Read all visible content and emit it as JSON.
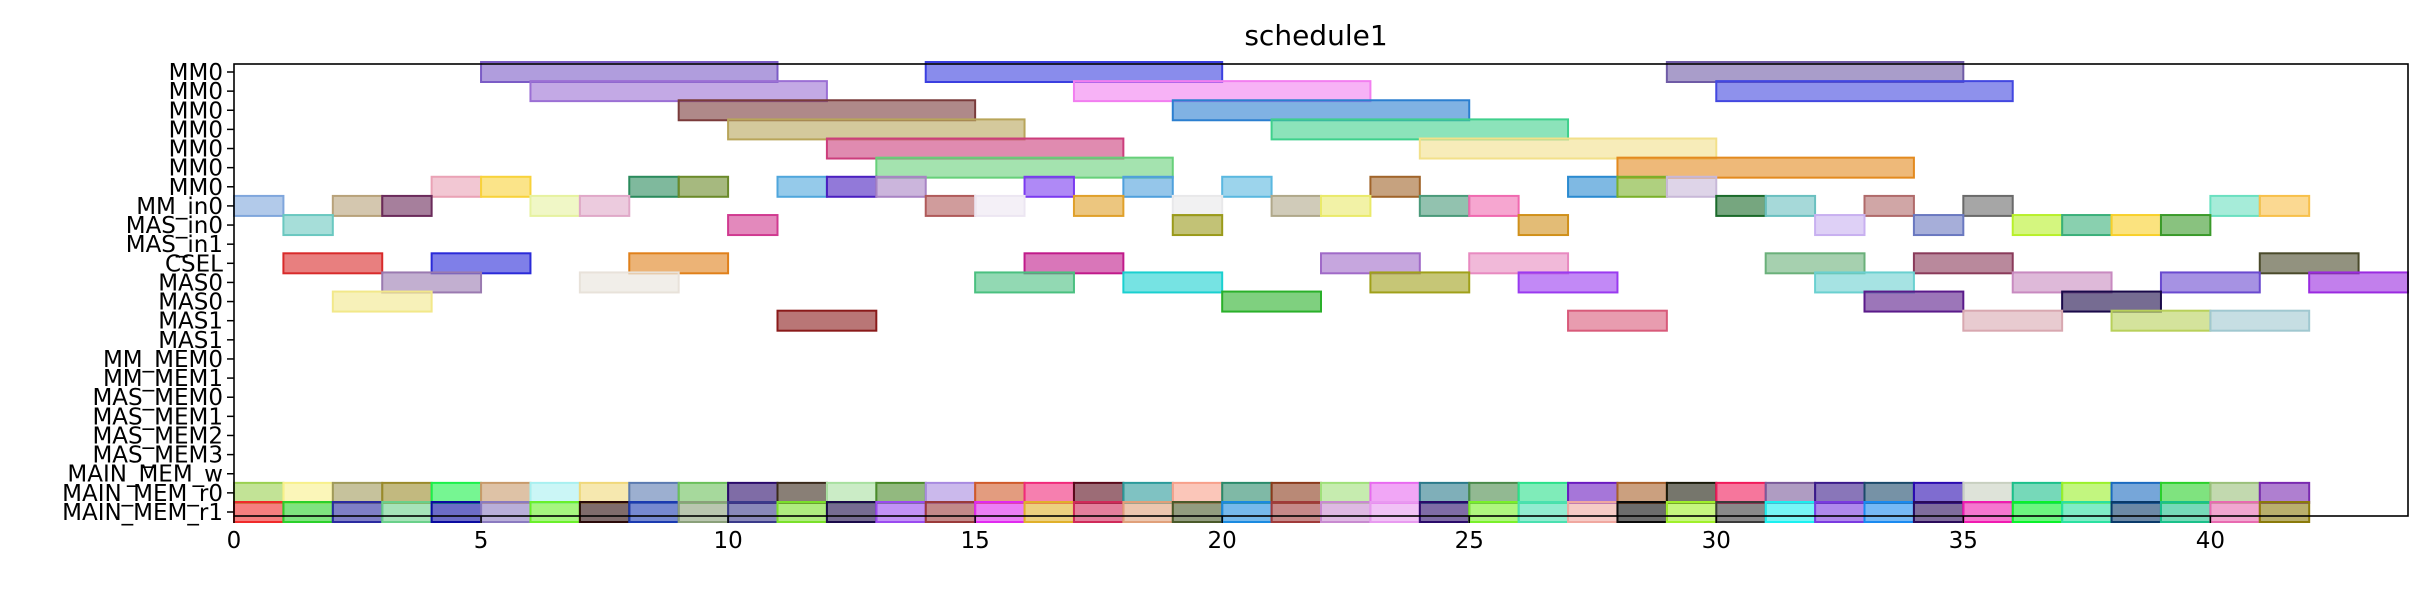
{
  "chart_data": {
    "type": "gantt",
    "title": "schedule1",
    "xlim": [
      0,
      44
    ],
    "x_ticks": [
      0,
      5,
      10,
      15,
      20,
      25,
      30,
      35,
      40
    ],
    "rows": [
      "MM0",
      "MM0",
      "MM0",
      "MM0",
      "MM0",
      "MM0",
      "MM0",
      "MM_in0",
      "MAS_in0",
      "MAS_in1",
      "CSEL",
      "MAS0",
      "MAS0",
      "MAS1",
      "MAS1",
      "MM_MEM0",
      "MM_MEM1",
      "MAS_MEM0",
      "MAS_MEM1",
      "MAS_MEM2",
      "MAS_MEM3",
      "MAIN_MEM_w",
      "MAIN_MEM_r0",
      "MAIN_MEM_r1"
    ],
    "tasks": [
      {
        "row": 0,
        "start": 5,
        "end": 11,
        "color": "#7b5cc6"
      },
      {
        "row": 0,
        "start": 14,
        "end": 20,
        "color": "#3b3fe0"
      },
      {
        "row": 0,
        "start": 29,
        "end": 35,
        "color": "#6f5ba6"
      },
      {
        "row": 1,
        "start": 6,
        "end": 12,
        "color": "#9b6fd4"
      },
      {
        "row": 1,
        "start": 17,
        "end": 23,
        "color": "#f27ef0"
      },
      {
        "row": 1,
        "start": 30,
        "end": 36,
        "color": "#4247e0"
      },
      {
        "row": 2,
        "start": 9,
        "end": 15,
        "color": "#7a3b3b"
      },
      {
        "row": 2,
        "start": 19,
        "end": 25,
        "color": "#2b7fd0"
      },
      {
        "row": 3,
        "start": 10,
        "end": 16,
        "color": "#b8a55a"
      },
      {
        "row": 3,
        "start": 21,
        "end": 27,
        "color": "#3fd08c"
      },
      {
        "row": 4,
        "start": 12,
        "end": 18,
        "color": "#cc3d7c"
      },
      {
        "row": 4,
        "start": 24,
        "end": 30,
        "color": "#f2e08a"
      },
      {
        "row": 5,
        "start": 13,
        "end": 19,
        "color": "#67d07a"
      },
      {
        "row": 5,
        "start": 28,
        "end": 34,
        "color": "#e38a1f"
      },
      {
        "row": 6,
        "start": 4,
        "end": 5,
        "color": "#eaa2b5"
      },
      {
        "row": 6,
        "start": 5,
        "end": 6,
        "color": "#f8d23a"
      },
      {
        "row": 6,
        "start": 8,
        "end": 9,
        "color": "#2a8a5c"
      },
      {
        "row": 6,
        "start": 9,
        "end": 10,
        "color": "#6b8a2a"
      },
      {
        "row": 6,
        "start": 11,
        "end": 12,
        "color": "#4fa6dc"
      },
      {
        "row": 6,
        "start": 12,
        "end": 13,
        "color": "#4a1fc0"
      },
      {
        "row": 6,
        "start": 13,
        "end": 14,
        "color": "#a884c4"
      },
      {
        "row": 6,
        "start": 16,
        "end": 17,
        "color": "#7a3af0"
      },
      {
        "row": 6,
        "start": 18,
        "end": 19,
        "color": "#4fa0dc"
      },
      {
        "row": 6,
        "start": 20,
        "end": 21,
        "color": "#5ab8e0"
      },
      {
        "row": 6,
        "start": 23,
        "end": 24,
        "color": "#a0642a"
      },
      {
        "row": 6,
        "start": 27,
        "end": 28,
        "color": "#2a8ad0"
      },
      {
        "row": 6,
        "start": 28,
        "end": 29,
        "color": "#7ab02a"
      },
      {
        "row": 6,
        "start": 29,
        "end": 30,
        "color": "#c8b8d8"
      },
      {
        "row": 7,
        "start": 0,
        "end": 1,
        "color": "#7fa6dc"
      },
      {
        "row": 7,
        "start": 2,
        "end": 3,
        "color": "#b8a27a"
      },
      {
        "row": 7,
        "start": 3,
        "end": 4,
        "color": "#6a2a5a"
      },
      {
        "row": 7,
        "start": 6,
        "end": 7,
        "color": "#e6f2a0"
      },
      {
        "row": 7,
        "start": 7,
        "end": 8,
        "color": "#e0a8c8"
      },
      {
        "row": 7,
        "start": 14,
        "end": 15,
        "color": "#b05a5a"
      },
      {
        "row": 7,
        "start": 15,
        "end": 16,
        "color": "#ece6f2"
      },
      {
        "row": 7,
        "start": 17,
        "end": 18,
        "color": "#e0a02a"
      },
      {
        "row": 7,
        "start": 19,
        "end": 20,
        "color": "#e8e8ea"
      },
      {
        "row": 7,
        "start": 21,
        "end": 22,
        "color": "#b0a88a"
      },
      {
        "row": 7,
        "start": 22,
        "end": 23,
        "color": "#eaea6a"
      },
      {
        "row": 7,
        "start": 24,
        "end": 25,
        "color": "#4a9a7a"
      },
      {
        "row": 7,
        "start": 25,
        "end": 26,
        "color": "#f06ab0"
      },
      {
        "row": 7,
        "start": 30,
        "end": 31,
        "color": "#1a6a2a"
      },
      {
        "row": 7,
        "start": 31,
        "end": 32,
        "color": "#6ac0c0"
      },
      {
        "row": 7,
        "start": 33,
        "end": 34,
        "color": "#b06a6a"
      },
      {
        "row": 7,
        "start": 35,
        "end": 36,
        "color": "#6a6a6a"
      },
      {
        "row": 7,
        "start": 40,
        "end": 41,
        "color": "#6ae0c0"
      },
      {
        "row": 7,
        "start": 41,
        "end": 42,
        "color": "#f8c04a"
      },
      {
        "row": 8,
        "start": 1,
        "end": 2,
        "color": "#6ac8c0"
      },
      {
        "row": 8,
        "start": 10,
        "end": 11,
        "color": "#d03a90"
      },
      {
        "row": 8,
        "start": 19,
        "end": 20,
        "color": "#9a9a1a"
      },
      {
        "row": 8,
        "start": 26,
        "end": 27,
        "color": "#d0901a"
      },
      {
        "row": 8,
        "start": 32,
        "end": 33,
        "color": "#c8b0f0"
      },
      {
        "row": 8,
        "start": 34,
        "end": 35,
        "color": "#6a78c0"
      },
      {
        "row": 8,
        "start": 36,
        "end": 37,
        "color": "#b8f02a"
      },
      {
        "row": 8,
        "start": 37,
        "end": 38,
        "color": "#3ab07a"
      },
      {
        "row": 8,
        "start": 38,
        "end": 39,
        "color": "#f8d02a"
      },
      {
        "row": 8,
        "start": 39,
        "end": 40,
        "color": "#3a9a2a"
      },
      {
        "row": 10,
        "start": 1,
        "end": 3,
        "color": "#d82a2a"
      },
      {
        "row": 10,
        "start": 4,
        "end": 6,
        "color": "#2a2ad8"
      },
      {
        "row": 10,
        "start": 8,
        "end": 10,
        "color": "#e0801a"
      },
      {
        "row": 10,
        "start": 16,
        "end": 18,
        "color": "#c01a8a"
      },
      {
        "row": 10,
        "start": 22,
        "end": 24,
        "color": "#a06ac8"
      },
      {
        "row": 10,
        "start": 25,
        "end": 27,
        "color": "#e88ac0"
      },
      {
        "row": 10,
        "start": 31,
        "end": 33,
        "color": "#6ab07a"
      },
      {
        "row": 10,
        "start": 34,
        "end": 36,
        "color": "#8a3a5a"
      },
      {
        "row": 10,
        "start": 41,
        "end": 43,
        "color": "#4a4a2a"
      },
      {
        "row": 11,
        "start": 3,
        "end": 5,
        "color": "#9a7ab0"
      },
      {
        "row": 11,
        "start": 7,
        "end": 9,
        "color": "#e8e2da"
      },
      {
        "row": 11,
        "start": 15,
        "end": 17,
        "color": "#4ac080"
      },
      {
        "row": 11,
        "start": 18,
        "end": 20,
        "color": "#1ad0d0"
      },
      {
        "row": 11,
        "start": 23,
        "end": 25,
        "color": "#a0a01a"
      },
      {
        "row": 11,
        "start": 26,
        "end": 28,
        "color": "#9a3af0"
      },
      {
        "row": 11,
        "start": 32,
        "end": 34,
        "color": "#6ad0d0"
      },
      {
        "row": 11,
        "start": 36,
        "end": 38,
        "color": "#c88ac0"
      },
      {
        "row": 11,
        "start": 39,
        "end": 41,
        "color": "#6a4ad0"
      },
      {
        "row": 11,
        "start": 42,
        "end": 44,
        "color": "#9a2ae0"
      },
      {
        "row": 12,
        "start": 2,
        "end": 4,
        "color": "#f2e88a"
      },
      {
        "row": 12,
        "start": 20,
        "end": 22,
        "color": "#2ab02a"
      },
      {
        "row": 12,
        "start": 33,
        "end": 35,
        "color": "#5a1a8a"
      },
      {
        "row": 12,
        "start": 37,
        "end": 39,
        "color": "#1a0a4a"
      },
      {
        "row": 13,
        "start": 11,
        "end": 13,
        "color": "#8a1a1a"
      },
      {
        "row": 13,
        "start": 27,
        "end": 29,
        "color": "#d85a7a"
      },
      {
        "row": 13,
        "start": 35,
        "end": 37,
        "color": "#d8a8b0"
      },
      {
        "row": 13,
        "start": 38,
        "end": 40,
        "color": "#b8d05a"
      },
      {
        "row": 13,
        "start": 40,
        "end": 42,
        "color": "#a0c8d0"
      }
    ],
    "mem_rows": {
      "MAIN_MEM_r0": {
        "start": 0,
        "colors": [
          "#9ad050",
          "#f8f08a",
          "#a09a5a",
          "#9a8a2a",
          "#1af04a",
          "#c89a6a",
          "#a8f0f0",
          "#f0d87a",
          "#5a7ab0",
          "#6ac05a",
          "#2a0a6a",
          "#3a2a1a",
          "#a8e0a0",
          "#4a8a2a",
          "#a88ae0",
          "#d05a2a",
          "#f02a7a",
          "#5a0a1a",
          "#2a9a9a",
          "#f8a08a",
          "#2a8a6a",
          "#8a3a1a",
          "#a0e07a",
          "#e86af0",
          "#2a7a8a",
          "#4a8a4a",
          "#2ae08a",
          "#6a1ac0",
          "#a8602a",
          "#1a1a0a",
          "#f01a5a",
          "#7a5a9a",
          "#3a1a8a",
          "#1a4a6a",
          "#2a0ab0",
          "#c8d0c0",
          "#1ac08a",
          "#9af02a",
          "#1a6ac0",
          "#2ad02a",
          "#9ac07a",
          "#7a2ab0"
        ]
      },
      "MAIN_MEM_r1": {
        "start": 0,
        "colors": [
          "#f02a2a",
          "#2ad02a",
          "#2a2aa0",
          "#6ad08a",
          "#0a0aa0",
          "#8a7ac0",
          "#6af02a",
          "#2a0a0a",
          "#1a3ab0",
          "#8aa07a",
          "#3a3a8a",
          "#7ae02a",
          "#1a0a4a",
          "#9a4af0",
          "#9a3a3a",
          "#e02af0",
          "#e0b02a",
          "#d02a5a",
          "#e0a07a",
          "#4a5a2a",
          "#1a8ae0",
          "#a03a3a",
          "#c88ad0",
          "#e89af0",
          "#2a0a6a",
          "#7af02a",
          "#4ae0b0",
          "#f0a8a0",
          "#0a0a0a",
          "#a0f02a",
          "#3a3a3a",
          "#1af0f0",
          "#7a3ae0",
          "#1a8af0",
          "#2a0a5a",
          "#f01ab0",
          "#0af02a",
          "#2ae0a0",
          "#0a3a6a",
          "#1ac08a",
          "#e86ab0",
          "#8a7a0a"
        ]
      }
    }
  }
}
